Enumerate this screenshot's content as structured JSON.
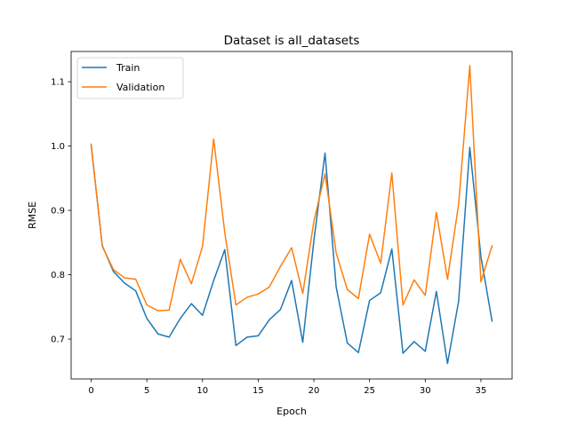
{
  "chart_data": {
    "type": "line",
    "title": "Dataset is all_datasets",
    "xlabel": "Epoch",
    "ylabel": "RMSE",
    "xlim": [
      -1.8,
      37.8
    ],
    "ylim": [
      0.638,
      1.147
    ],
    "x_ticks": [
      0,
      5,
      10,
      15,
      20,
      25,
      30,
      35
    ],
    "y_ticks": [
      0.7,
      0.8,
      0.9,
      1.0,
      1.1
    ],
    "x_tick_labels": [
      "0",
      "5",
      "10",
      "15",
      "20",
      "25",
      "30",
      "35"
    ],
    "y_tick_labels": [
      "0.7",
      "0.8",
      "0.9",
      "1.0",
      "1.1"
    ],
    "grid": false,
    "legend_position": "top-left",
    "x": [
      0,
      1,
      2,
      3,
      4,
      5,
      6,
      7,
      8,
      9,
      10,
      11,
      12,
      13,
      14,
      15,
      16,
      17,
      18,
      19,
      20,
      21,
      22,
      23,
      24,
      25,
      26,
      27,
      28,
      29,
      30,
      31,
      32,
      33,
      34,
      35,
      36
    ],
    "series": [
      {
        "name": "Train",
        "color": "#1f77b4",
        "values": [
          1.001,
          0.845,
          0.805,
          0.787,
          0.775,
          0.732,
          0.708,
          0.703,
          0.732,
          0.755,
          0.737,
          0.791,
          0.839,
          0.69,
          0.703,
          0.705,
          0.73,
          0.746,
          0.791,
          0.695,
          0.853,
          0.989,
          0.781,
          0.694,
          0.679,
          0.76,
          0.772,
          0.84,
          0.678,
          0.696,
          0.681,
          0.774,
          0.662,
          0.759,
          0.998,
          0.828,
          0.728
        ]
      },
      {
        "name": "Validation",
        "color": "#ff7f0e",
        "values": [
          1.003,
          0.844,
          0.808,
          0.795,
          0.793,
          0.753,
          0.744,
          0.745,
          0.824,
          0.786,
          0.844,
          1.011,
          0.865,
          0.753,
          0.765,
          0.77,
          0.781,
          0.813,
          0.842,
          0.771,
          0.883,
          0.957,
          0.834,
          0.777,
          0.763,
          0.863,
          0.818,
          0.958,
          0.753,
          0.792,
          0.768,
          0.897,
          0.793,
          0.91,
          1.125,
          0.789,
          0.845
        ]
      }
    ]
  }
}
